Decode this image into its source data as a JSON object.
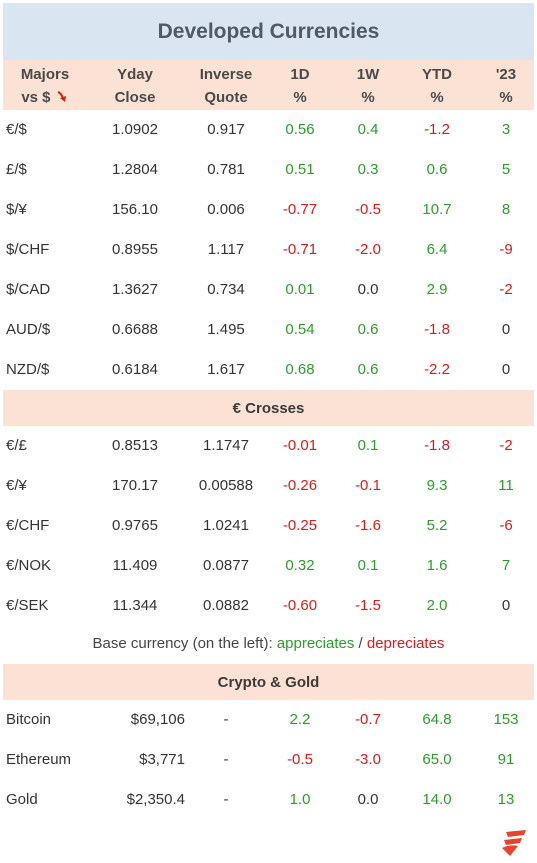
{
  "title": "Developed Currencies",
  "header": {
    "col1_line1": "Majors",
    "col1_line2": "vs $",
    "col2_line1": "Yday",
    "col2_line2": "Close",
    "col3_line1": "Inverse",
    "col3_line2": "Quote",
    "col4_line1": "1D",
    "col4_line2": "%",
    "col5_line1": "1W",
    "col5_line2": "%",
    "col6_line1": "YTD",
    "col6_line2": "%",
    "col7_line1": "'23",
    "col7_line2": "%"
  },
  "majors": [
    {
      "pair": "€/$",
      "close": "1.0902",
      "inverse": "0.917",
      "d1": "0.56",
      "w1": "0.4",
      "ytd": "-1.2",
      "y23": "3"
    },
    {
      "pair": "£/$",
      "close": "1.2804",
      "inverse": "0.781",
      "d1": "0.51",
      "w1": "0.3",
      "ytd": "0.6",
      "y23": "5"
    },
    {
      "pair": "$/¥",
      "close": "156.10",
      "inverse": "0.006",
      "d1": "-0.77",
      "w1": "-0.5",
      "ytd": "10.7",
      "y23": "8"
    },
    {
      "pair": "$/CHF",
      "close": "0.8955",
      "inverse": "1.117",
      "d1": "-0.71",
      "w1": "-2.0",
      "ytd": "6.4",
      "y23": "-9"
    },
    {
      "pair": "$/CAD",
      "close": "1.3627",
      "inverse": "0.734",
      "d1": "0.01",
      "w1": "0.0",
      "ytd": "2.9",
      "y23": "-2"
    },
    {
      "pair": "AUD/$",
      "close": "0.6688",
      "inverse": "1.495",
      "d1": "0.54",
      "w1": "0.6",
      "ytd": "-1.8",
      "y23": "0"
    },
    {
      "pair": "NZD/$",
      "close": "0.6184",
      "inverse": "1.617",
      "d1": "0.68",
      "w1": "0.6",
      "ytd": "-2.2",
      "y23": "0"
    }
  ],
  "crosses_title": "€ Crosses",
  "crosses": [
    {
      "pair": "€/£",
      "close": "0.8513",
      "inverse": "1.1747",
      "d1": "-0.01",
      "w1": "0.1",
      "ytd": "-1.8",
      "y23": "-2"
    },
    {
      "pair": "€/¥",
      "close": "170.17",
      "inverse": "0.00588",
      "d1": "-0.26",
      "w1": "-0.1",
      "ytd": "9.3",
      "y23": "11"
    },
    {
      "pair": "€/CHF",
      "close": "0.9765",
      "inverse": "1.0241",
      "d1": "-0.25",
      "w1": "-1.6",
      "ytd": "5.2",
      "y23": "-6"
    },
    {
      "pair": "€/NOK",
      "close": "11.409",
      "inverse": "0.0877",
      "d1": "0.32",
      "w1": "0.1",
      "ytd": "1.6",
      "y23": "7"
    },
    {
      "pair": "€/SEK",
      "close": "11.344",
      "inverse": "0.0882",
      "d1": "-0.60",
      "w1": "-1.5",
      "ytd": "2.0",
      "y23": "0"
    }
  ],
  "note": {
    "prefix": "Base currency (on the left): ",
    "appreciates": "appreciates",
    "sep": " / ",
    "depreciates": "depreciates"
  },
  "crypto_title": "Crypto & Gold",
  "crypto": [
    {
      "pair": "Bitcoin",
      "close": "$69,106",
      "inverse": "-",
      "d1": "2.2",
      "w1": "-0.7",
      "ytd": "64.8",
      "y23": "153"
    },
    {
      "pair": "Ethereum",
      "close": "$3,771",
      "inverse": "-",
      "d1": "-0.5",
      "w1": "-3.0",
      "ytd": "65.0",
      "y23": "91"
    },
    {
      "pair": "Gold",
      "close": "$2,350.4",
      "inverse": "-",
      "d1": "1.0",
      "w1": "0.0",
      "ytd": "14.0",
      "y23": "13"
    }
  ],
  "colors": {
    "positive": "#2e9a2e",
    "negative": "#d01f1f",
    "header_bg": "#fbe2d4",
    "title_bg": "#d9e6f2"
  },
  "icons": {
    "sort": "down-arrow-icon",
    "logo": "brand-logo-icon"
  }
}
